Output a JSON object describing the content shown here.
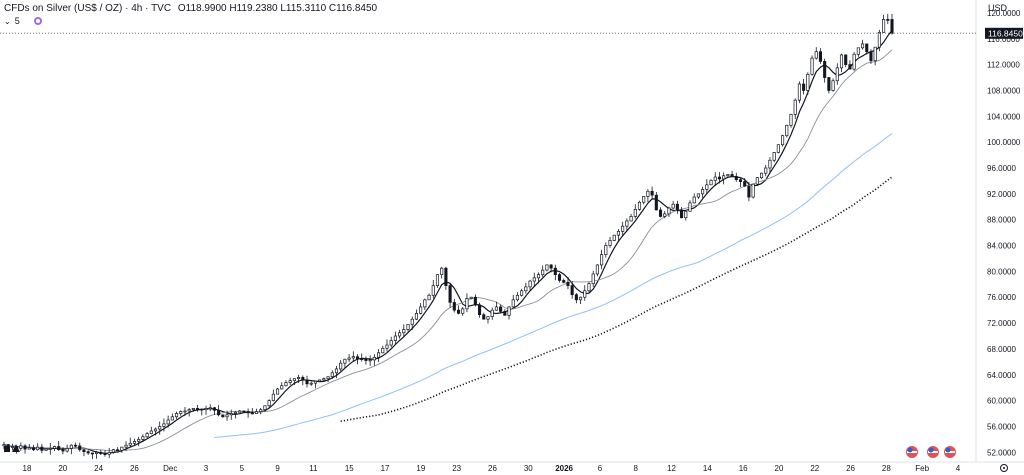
{
  "header": {
    "symbol": "CFDs on Silver (US$ / OZ) · 4h · TVC",
    "ohlc": "O118.9900 H119.2380 L115.3110 C116.8450"
  },
  "indicator": {
    "chevron": "⌄",
    "value": "5"
  },
  "currency": "USD",
  "price_label": "116.8450",
  "colors": {
    "candle": "#131722",
    "ma_fast": "#131722",
    "ma_slow": "#8a8f98",
    "ma_blue": "#90bff9",
    "ma_dotted": "#131722",
    "price_line": "#787b86"
  },
  "chart_data": {
    "type": "candlestick",
    "y_ticks": [
      "52.0000",
      "56.0000",
      "60.0000",
      "64.0000",
      "68.0000",
      "72.0000",
      "76.0000",
      "80.0000",
      "84.0000",
      "88.0000",
      "92.0000",
      "96.0000",
      "100.0000",
      "104.0000",
      "108.0000",
      "112.0000",
      "116.0000",
      "120.0000"
    ],
    "x_ticks": [
      "18",
      "20",
      "24",
      "26",
      "Dec",
      "3",
      "5",
      "9",
      "11",
      "15",
      "17",
      "19",
      "23",
      "26",
      "30",
      "2026",
      "6",
      "8",
      "12",
      "14",
      "16",
      "20",
      "22",
      "26",
      "28",
      "Feb",
      "4"
    ],
    "ylim": [
      50.5,
      122
    ],
    "last_price": 116.845,
    "closes": [
      53.2,
      52.8,
      52.9,
      52.6,
      53.0,
      52.5,
      52.7,
      52.4,
      52.8,
      52.3,
      52.5,
      52.6,
      52.9,
      52.4,
      52.2,
      52.6,
      53.1,
      53.0,
      52.4,
      52.1,
      51.9,
      51.8,
      52.0,
      51.8,
      51.7,
      52.0,
      52.4,
      52.3,
      52.8,
      53.1,
      53.4,
      53.7,
      54.0,
      54.4,
      54.9,
      55.3,
      55.6,
      56.0,
      56.4,
      57.0,
      57.5,
      58.0,
      58.3,
      58.4,
      58.6,
      58.8,
      58.7,
      58.6,
      58.8,
      58.9,
      58.5,
      57.8,
      57.5,
      57.8,
      58.0,
      58.2,
      58.4,
      58.3,
      58.1,
      58.0,
      58.3,
      58.6,
      59.2,
      60.0,
      61.0,
      61.8,
      62.3,
      62.8,
      63.1,
      63.4,
      63.6,
      63.2,
      62.6,
      62.7,
      63.0,
      63.2,
      63.4,
      63.7,
      64.3,
      64.9,
      65.8,
      66.4,
      66.6,
      66.8,
      66.5,
      66.4,
      66.2,
      66.3,
      66.7,
      67.4,
      68.1,
      68.6,
      69.3,
      70.0,
      70.5,
      71.0,
      71.8,
      72.6,
      73.5,
      74.5,
      75.6,
      76.3,
      77.8,
      79.5,
      80.5,
      77.8,
      75.2,
      74.0,
      73.5,
      74.2,
      75.8,
      76.0,
      74.8,
      73.3,
      72.6,
      73.0,
      74.0,
      74.5,
      73.8,
      73.2,
      74.5,
      75.6,
      76.3,
      77.0,
      77.6,
      78.5,
      79.0,
      79.5,
      80.2,
      81.0,
      80.5,
      79.5,
      78.6,
      78.3,
      77.8,
      76.4,
      75.6,
      76.0,
      77.0,
      78.1,
      79.6,
      81.0,
      82.6,
      84.0,
      84.8,
      85.6,
      86.2,
      87.0,
      87.8,
      88.5,
      89.6,
      90.7,
      91.6,
      92.4,
      91.8,
      89.5,
      88.5,
      88.9,
      89.8,
      90.4,
      89.5,
      88.3,
      89.3,
      90.6,
      91.5,
      92.0,
      92.7,
      93.4,
      94.1,
      94.6,
      94.3,
      94.8,
      95.0,
      94.7,
      94.2,
      93.9,
      93.2,
      91.5,
      93.5,
      94.5,
      95.2,
      96.0,
      97.2,
      98.4,
      99.6,
      101.0,
      102.6,
      104.3,
      106.5,
      109.0,
      108.0,
      110.5,
      113.0,
      114.0,
      112.5,
      110.0,
      108.0,
      109.5,
      111.5,
      113.5,
      112.0,
      111.3,
      113.6,
      114.6,
      115.2,
      114.0,
      112.6,
      114.7,
      117.0,
      119.0,
      118.99,
      116.845
    ],
    "open": 118.99,
    "high": 119.238,
    "low": 115.311,
    "close": 116.845,
    "moving_averages": [
      {
        "style": "solid-black",
        "period": 5
      },
      {
        "style": "solid-gray",
        "period": 15
      },
      {
        "style": "solid-blue",
        "period": 60
      },
      {
        "style": "dotted-black",
        "period": 90
      }
    ]
  }
}
